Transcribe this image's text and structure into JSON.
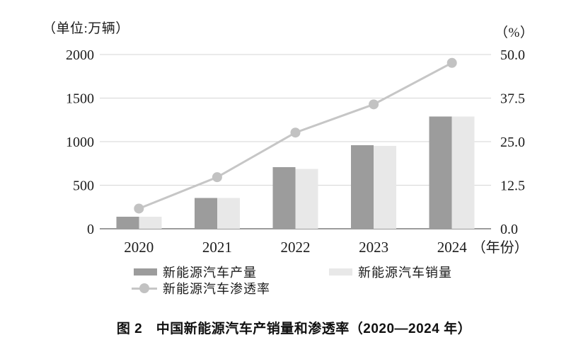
{
  "figure": {
    "caption": "图 2　中国新能源汽车产销量和渗透率（2020—2024 年）"
  },
  "chart_data": {
    "type": "combo-bar-line",
    "categories": [
      "2020",
      "2021",
      "2022",
      "2023",
      "2024"
    ],
    "x_axis_suffix": "（年份）",
    "series": [
      {
        "name": "新能源汽车产量",
        "type": "bar",
        "axis": "left",
        "color": "#9c9c9c",
        "values": [
          136.6,
          354.5,
          705.8,
          958.7,
          1288.8
        ]
      },
      {
        "name": "新能源汽车销量",
        "type": "bar",
        "axis": "left",
        "color": "#e8e8e8",
        "values": [
          136.7,
          352.1,
          688.7,
          949.5,
          1286.6
        ]
      },
      {
        "name": "新能源汽车渗透率",
        "type": "line",
        "axis": "right",
        "color": "#c6c6c6",
        "marker_color": "#c2c2c2",
        "values": [
          5.8,
          14.8,
          27.6,
          35.7,
          47.6
        ]
      }
    ],
    "left_axis": {
      "unit": "（单位:万辆）",
      "ticks": [
        0,
        500,
        1000,
        1500,
        2000
      ],
      "range": [
        0,
        2000
      ]
    },
    "right_axis": {
      "unit": "（%）",
      "ticks": [
        "0.0",
        "12.5",
        "25.0",
        "37.5",
        "50.0"
      ],
      "range": [
        0,
        50
      ]
    },
    "grid": true,
    "legend_position": "bottom",
    "colors": {
      "grid": "#d6d6d6",
      "baseline": "#9c9c9c",
      "text": "#1c1c1c"
    }
  }
}
